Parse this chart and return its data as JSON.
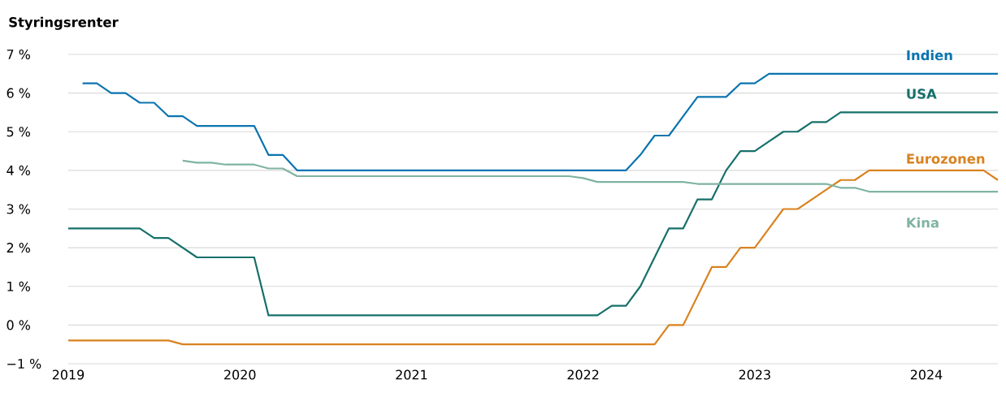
{
  "chart_data": {
    "type": "line",
    "title": "Styringsrenter",
    "xlim": [
      "2019-01",
      "2024-06"
    ],
    "xticks": [
      "2019",
      "2020",
      "2021",
      "2022",
      "2023",
      "2024"
    ],
    "ylim": [
      -1,
      7
    ],
    "yticks": [
      {
        "value": -1,
        "label": "−1 %"
      },
      {
        "value": 0,
        "label": "0 %"
      },
      {
        "value": 1,
        "label": "1 %"
      },
      {
        "value": 2,
        "label": "2 %"
      },
      {
        "value": 3,
        "label": "3 %"
      },
      {
        "value": 4,
        "label": "4 %"
      },
      {
        "value": 5,
        "label": "5 %"
      },
      {
        "value": 6,
        "label": "6 %"
      },
      {
        "value": 7,
        "label": "7 %"
      }
    ],
    "grid": "y",
    "marker": "none",
    "line_style": "solid",
    "series": [
      {
        "name": "Indien",
        "color": "#0a74b0",
        "x": [
          "2019-02",
          "2019-03",
          "2019-04",
          "2019-05",
          "2019-06",
          "2019-07",
          "2019-08",
          "2019-09",
          "2019-10",
          "2020-02",
          "2020-03",
          "2020-04",
          "2020-05",
          "2022-04",
          "2022-05",
          "2022-06",
          "2022-07",
          "2022-08",
          "2022-09",
          "2022-11",
          "2022-12",
          "2023-01",
          "2023-02",
          "2024-06"
        ],
        "values": [
          6.25,
          6.25,
          6.0,
          6.0,
          5.75,
          5.75,
          5.4,
          5.4,
          5.15,
          5.15,
          4.4,
          4.4,
          4.0,
          4.0,
          4.4,
          4.9,
          4.9,
          5.4,
          5.9,
          5.9,
          6.25,
          6.25,
          6.5,
          6.5
        ]
      },
      {
        "name": "USA",
        "color": "#16706a",
        "x": [
          "2019-01",
          "2019-06",
          "2019-07",
          "2019-08",
          "2019-09",
          "2019-10",
          "2020-02",
          "2020-03",
          "2022-02",
          "2022-03",
          "2022-04",
          "2022-05",
          "2022-06",
          "2022-07",
          "2022-08",
          "2022-09",
          "2022-10",
          "2022-11",
          "2022-12",
          "2023-01",
          "2023-02",
          "2023-03",
          "2023-04",
          "2023-05",
          "2023-06",
          "2023-07",
          "2024-06"
        ],
        "values": [
          2.5,
          2.5,
          2.25,
          2.25,
          2.0,
          1.75,
          1.75,
          0.25,
          0.25,
          0.5,
          0.5,
          1.0,
          1.75,
          2.5,
          2.5,
          3.25,
          3.25,
          4.0,
          4.5,
          4.5,
          4.75,
          5.0,
          5.0,
          5.25,
          5.25,
          5.5,
          5.5
        ]
      },
      {
        "name": "Eurozonen",
        "color": "#d9821f",
        "x": [
          "2019-01",
          "2019-08",
          "2019-09",
          "2022-06",
          "2022-07",
          "2022-08",
          "2022-09",
          "2022-10",
          "2022-11",
          "2022-12",
          "2023-01",
          "2023-02",
          "2023-03",
          "2023-04",
          "2023-05",
          "2023-06",
          "2023-07",
          "2023-08",
          "2023-09",
          "2024-05",
          "2024-06"
        ],
        "values": [
          -0.4,
          -0.4,
          -0.5,
          -0.5,
          0.0,
          0.0,
          0.75,
          1.5,
          1.5,
          2.0,
          2.0,
          2.5,
          3.0,
          3.0,
          3.25,
          3.5,
          3.75,
          3.75,
          4.0,
          4.0,
          3.75
        ]
      },
      {
        "name": "Kina",
        "color": "#7fb3a3",
        "x": [
          "2019-09",
          "2019-10",
          "2019-11",
          "2019-12",
          "2020-02",
          "2020-03",
          "2020-04",
          "2020-05",
          "2021-12",
          "2022-01",
          "2022-02",
          "2022-08",
          "2022-09",
          "2023-06",
          "2023-07",
          "2023-08",
          "2023-09",
          "2024-06"
        ],
        "values": [
          4.25,
          4.2,
          4.2,
          4.15,
          4.15,
          4.05,
          4.05,
          3.85,
          3.85,
          3.8,
          3.7,
          3.7,
          3.65,
          3.65,
          3.55,
          3.55,
          3.45,
          3.45
        ]
      }
    ]
  }
}
